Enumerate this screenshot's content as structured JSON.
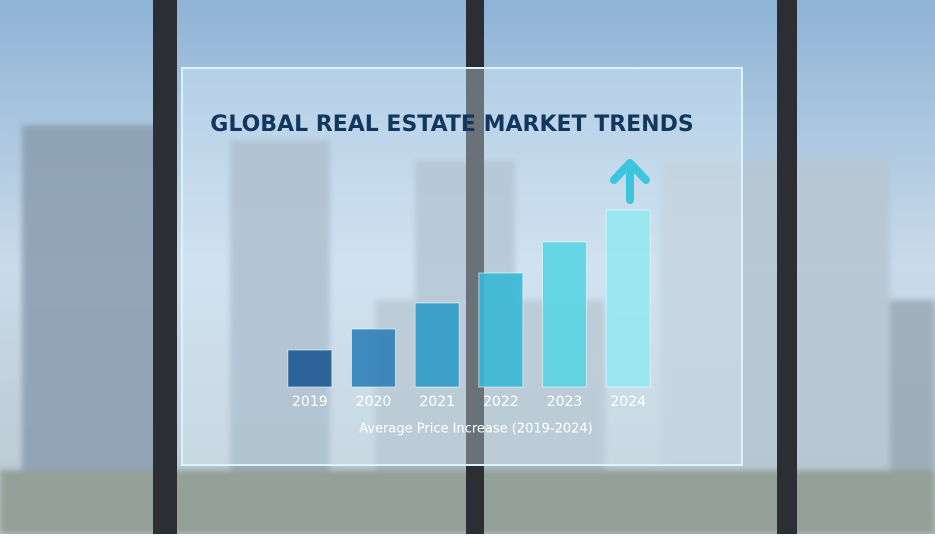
{
  "chart_data": {
    "type": "bar",
    "title": "GLOBAL REAL ESTATE MARKET TRENDS",
    "categories": [
      "2019",
      "2020",
      "2021",
      "2022",
      "2023",
      "2024"
    ],
    "values": [
      37,
      58,
      84,
      114,
      145,
      177
    ],
    "colors": [
      "#1d5a92",
      "#2f80b8",
      "#2e9ac6",
      "#38b8d4",
      "#5ad5e6",
      "#95e8f2"
    ],
    "ylim": [
      0,
      180
    ],
    "xlabel": "Average Price Increase (2019-2024)"
  }
}
